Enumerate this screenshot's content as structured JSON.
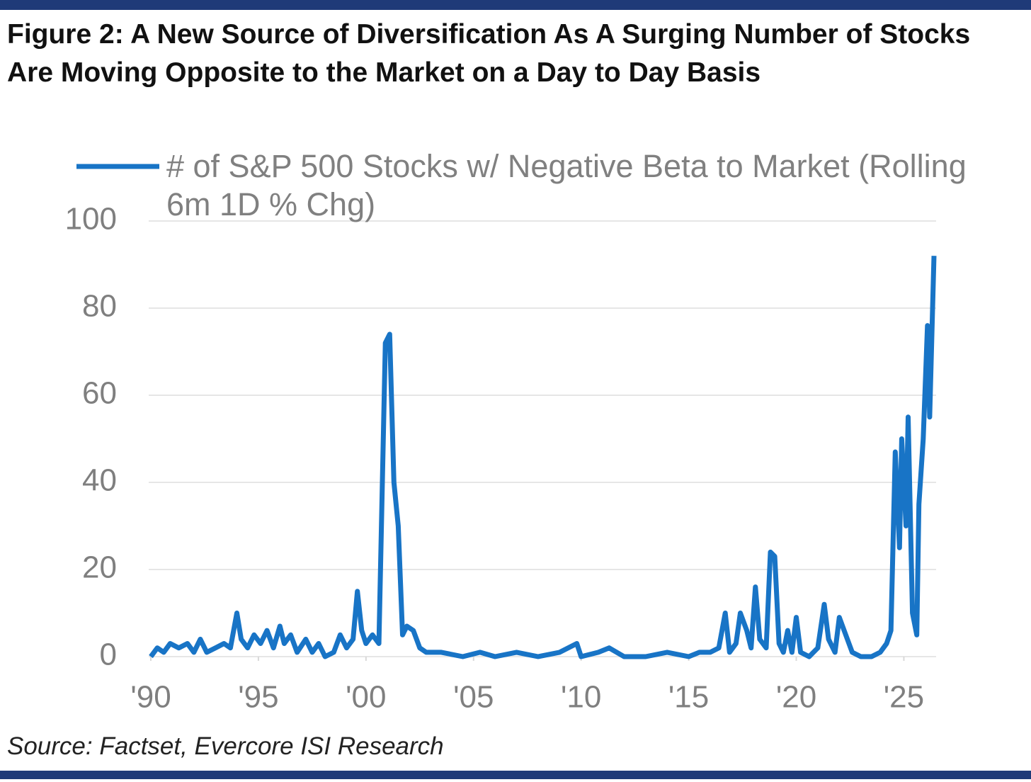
{
  "chart_data": {
    "type": "line",
    "title": "Figure 2: A New Source of Diversification As A Surging Number of Stocks Are Moving Opposite to the Market on a Day to Day Basis",
    "source": "Source: Factset, Evercore ISI Research",
    "x": [
      1990.0,
      1990.3,
      1990.6,
      1990.9,
      1991.3,
      1991.7,
      1992.0,
      1992.3,
      1992.6,
      1993.0,
      1993.4,
      1993.7,
      1994.0,
      1994.2,
      1994.5,
      1994.8,
      1995.1,
      1995.4,
      1995.7,
      1996.0,
      1996.2,
      1996.5,
      1996.8,
      1997.2,
      1997.5,
      1997.8,
      1998.1,
      1998.5,
      1998.8,
      1999.1,
      1999.4,
      1999.6,
      1999.8,
      2000.0,
      2000.3,
      2000.6,
      2000.9,
      2001.1,
      2001.3,
      2001.5,
      2001.7,
      2001.9,
      2002.2,
      2002.5,
      2002.8,
      2003.5,
      2004.5,
      2005.3,
      2006.0,
      2007.0,
      2008.0,
      2009.0,
      2009.8,
      2010.0,
      2010.8,
      2011.3,
      2012.0,
      2013.0,
      2014.0,
      2015.0,
      2015.5,
      2016.0,
      2016.4,
      2016.7,
      2016.9,
      2017.2,
      2017.4,
      2017.7,
      2017.9,
      2018.1,
      2018.3,
      2018.6,
      2018.8,
      2019.0,
      2019.2,
      2019.4,
      2019.6,
      2019.8,
      2020.0,
      2020.2,
      2020.6,
      2021.0,
      2021.3,
      2021.5,
      2021.8,
      2022.0,
      2022.3,
      2022.6,
      2023.0,
      2023.5,
      2023.9,
      2024.2,
      2024.4,
      2024.6,
      2024.8,
      2024.9,
      2025.1,
      2025.2,
      2025.4,
      2025.6,
      2025.7,
      2025.9,
      2026.1,
      2026.2,
      2026.4
    ],
    "series": [
      {
        "name": "# of S&P 500 Stocks w/ Negative Beta to Market (Rolling 6m 1D % Chg)",
        "color": "#1874c6",
        "values": [
          0,
          2,
          1,
          3,
          2,
          3,
          1,
          4,
          1,
          2,
          3,
          2,
          10,
          4,
          2,
          5,
          3,
          6,
          2,
          7,
          3,
          5,
          1,
          4,
          1,
          3,
          0,
          1,
          5,
          2,
          4,
          15,
          6,
          3,
          5,
          3,
          72,
          74,
          40,
          30,
          5,
          7,
          6,
          2,
          1,
          1,
          0,
          1,
          0,
          1,
          0,
          1,
          3,
          0,
          1,
          2,
          0,
          0,
          1,
          0,
          1,
          1,
          2,
          10,
          1,
          3,
          10,
          6,
          2,
          16,
          4,
          2,
          24,
          23,
          3,
          1,
          6,
          1,
          9,
          1,
          0,
          2,
          12,
          4,
          1,
          9,
          5,
          1,
          0,
          0,
          1,
          3,
          6,
          47,
          25,
          50,
          30,
          55,
          10,
          5,
          35,
          50,
          76,
          55,
          92
        ]
      }
    ],
    "xlim": [
      1990,
      2026.5
    ],
    "xticks": [
      {
        "value": 1990,
        "label": "'90"
      },
      {
        "value": 1995,
        "label": "'95"
      },
      {
        "value": 2000,
        "label": "'00"
      },
      {
        "value": 2005,
        "label": "'05"
      },
      {
        "value": 2010,
        "label": "'10"
      },
      {
        "value": 2015,
        "label": "'15"
      },
      {
        "value": 2020,
        "label": "'20"
      },
      {
        "value": 2025,
        "label": "'25"
      }
    ],
    "ylim": [
      0,
      100
    ],
    "yticks": [
      0,
      20,
      40,
      60,
      80,
      100
    ],
    "grid": true
  }
}
